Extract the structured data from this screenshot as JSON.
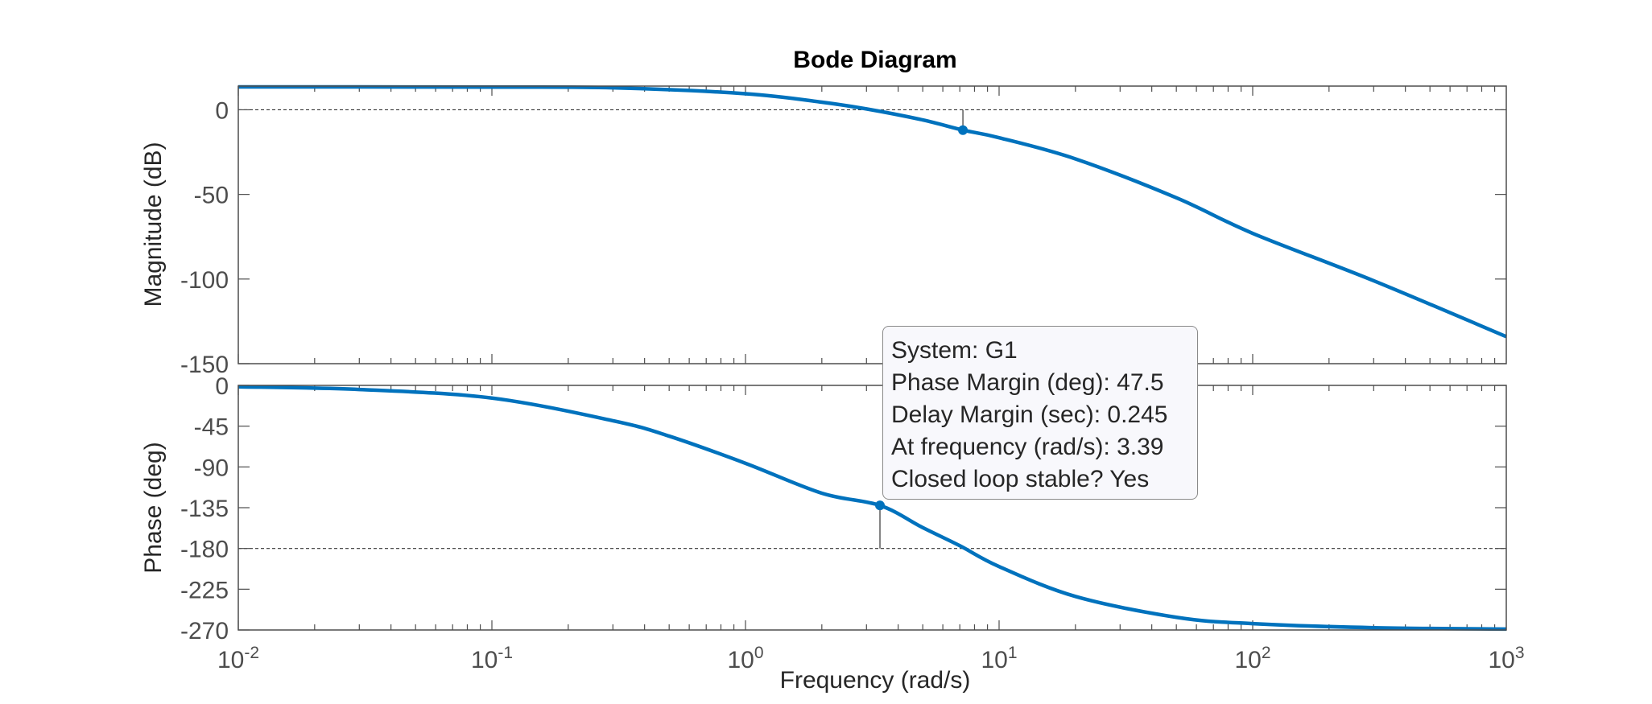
{
  "chart_data": {
    "type": "line",
    "title": "Bode Diagram",
    "xlabel": "Frequency  (rad/s)",
    "xscale": "log",
    "xlim": [
      0.01,
      1000
    ],
    "x_ticks": [
      {
        "base": "10",
        "exp": "-2"
      },
      {
        "base": "10",
        "exp": "-1"
      },
      {
        "base": "10",
        "exp": "0"
      },
      {
        "base": "10",
        "exp": "1"
      },
      {
        "base": "10",
        "exp": "2"
      },
      {
        "base": "10",
        "exp": "3"
      }
    ],
    "system": "G1",
    "magnitude": {
      "ylabel": "Magnitude (dB)",
      "ylim": [
        -150,
        14
      ],
      "yticks": [
        0,
        -50,
        -100,
        -150
      ],
      "reference_line": 0,
      "series": {
        "name": "G1",
        "x": [
          0.01,
          0.03,
          0.1,
          0.3,
          1,
          2,
          3,
          5,
          7.2,
          10,
          20,
          50,
          100,
          300,
          1000
        ],
        "values": [
          13.5,
          13.5,
          13.4,
          13,
          9.5,
          4.5,
          0.5,
          -6,
          -12,
          -16.5,
          -29,
          -52,
          -73,
          -101,
          -134
        ]
      },
      "marker": {
        "x": 7.2,
        "y": -12
      }
    },
    "phase": {
      "ylabel": "Phase (deg)",
      "ylim": [
        -270,
        0
      ],
      "yticks": [
        0,
        -45,
        -90,
        -135,
        -180,
        -225,
        -270
      ],
      "reference_line": -180,
      "series": {
        "name": "G1",
        "x": [
          0.01,
          0.03,
          0.1,
          0.3,
          0.5,
          1,
          2,
          3.39,
          5,
          7,
          10,
          20,
          50,
          100,
          300,
          1000
        ],
        "values": [
          -1.5,
          -4.5,
          -14,
          -39,
          -56,
          -86,
          -119,
          -132.5,
          -157,
          -177,
          -200,
          -233,
          -256,
          -263,
          -267.5,
          -269
        ]
      },
      "marker": {
        "x": 3.39,
        "y": -132.5
      }
    },
    "datatip": {
      "system_line": "System: G1",
      "phase_margin_line": "Phase Margin (deg): 47.5",
      "delay_margin_line": "Delay Margin (sec): 0.245",
      "frequency_line": "At frequency (rad/s): 3.39",
      "stability_line": "Closed loop stable? Yes"
    },
    "colors": {
      "line": "#0072bd",
      "axes": "#4d4d4d",
      "reference": "#333333"
    }
  }
}
